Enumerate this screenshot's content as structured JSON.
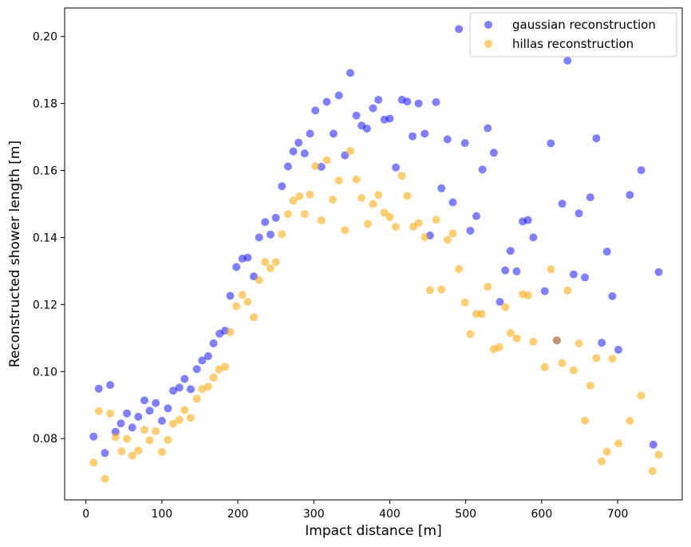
{
  "chart_data": {
    "type": "scatter",
    "xlabel": "Impact distance [m]",
    "ylabel": "Reconstructed shower length [m]",
    "xlim": [
      -28,
      785
    ],
    "ylim": [
      0.0617,
      0.2085
    ],
    "x_ticks": [
      0,
      100,
      200,
      300,
      400,
      500,
      600,
      700
    ],
    "y_ticks": [
      0.08,
      0.1,
      0.12,
      0.14,
      0.16,
      0.18,
      0.2
    ],
    "grid": false,
    "legend_position": "top-right",
    "series": [
      {
        "name": "gaussian reconstruction",
        "color": "#0000ff",
        "opacity": 0.5,
        "points": [
          [
            10,
            0.0806
          ],
          [
            17,
            0.0949
          ],
          [
            25,
            0.0757
          ],
          [
            32,
            0.096
          ],
          [
            39,
            0.082
          ],
          [
            46,
            0.0845
          ],
          [
            54,
            0.0875
          ],
          [
            61,
            0.0833
          ],
          [
            69,
            0.0865
          ],
          [
            77,
            0.0914
          ],
          [
            84,
            0.0883
          ],
          [
            92,
            0.0906
          ],
          [
            100,
            0.0853
          ],
          [
            108,
            0.089
          ],
          [
            115,
            0.0943
          ],
          [
            123,
            0.0952
          ],
          [
            130,
            0.0978
          ],
          [
            138,
            0.0947
          ],
          [
            146,
            0.1007
          ],
          [
            153,
            0.1033
          ],
          [
            161,
            0.1046
          ],
          [
            168,
            0.1084
          ],
          [
            176,
            0.1113
          ],
          [
            183,
            0.1122
          ],
          [
            190,
            0.1226
          ],
          [
            198,
            0.1312
          ],
          [
            206,
            0.1337
          ],
          [
            213,
            0.134
          ],
          [
            221,
            0.1284
          ],
          [
            228,
            0.14
          ],
          [
            236,
            0.1446
          ],
          [
            243,
            0.1409
          ],
          [
            250,
            0.1459
          ],
          [
            258,
            0.1553
          ],
          [
            266,
            0.1612
          ],
          [
            273,
            0.1657
          ],
          [
            280,
            0.1683
          ],
          [
            288,
            0.1651
          ],
          [
            295,
            0.171
          ],
          [
            302,
            0.1779
          ],
          [
            310,
            0.1611
          ],
          [
            317,
            0.1805
          ],
          [
            326,
            0.171
          ],
          [
            333,
            0.1824
          ],
          [
            341,
            0.1645
          ],
          [
            348,
            0.1891
          ],
          [
            356,
            0.1764
          ],
          [
            363,
            0.1734
          ],
          [
            370,
            0.1725
          ],
          [
            378,
            0.1786
          ],
          [
            385,
            0.1811
          ],
          [
            393,
            0.1752
          ],
          [
            400,
            0.1755
          ],
          [
            408,
            0.1609
          ],
          [
            416,
            0.1811
          ],
          [
            423,
            0.1806
          ],
          [
            430,
            0.1702
          ],
          [
            438,
            0.18
          ],
          [
            446,
            0.171
          ],
          [
            453,
            0.1406
          ],
          [
            461,
            0.1804
          ],
          [
            468,
            0.1547
          ],
          [
            476,
            0.1693
          ],
          [
            483,
            0.1505
          ],
          [
            491,
            0.2022
          ],
          [
            499,
            0.1682
          ],
          [
            506,
            0.142
          ],
          [
            514,
            0.1464
          ],
          [
            522,
            0.1603
          ],
          [
            529,
            0.1726
          ],
          [
            537,
            0.1653
          ],
          [
            545,
            0.1208
          ],
          [
            552,
            0.1302
          ],
          [
            559,
            0.136
          ],
          [
            567,
            0.1299
          ],
          [
            575,
            0.1448
          ],
          [
            582,
            0.1452
          ],
          [
            589,
            0.14
          ],
          [
            604,
            0.124
          ],
          [
            612,
            0.1681
          ],
          [
            627,
            0.1501
          ],
          [
            634,
            0.1928
          ],
          [
            642,
            0.129
          ],
          [
            649,
            0.1472
          ],
          [
            657,
            0.1281
          ],
          [
            664,
            0.152
          ],
          [
            672,
            0.1696
          ],
          [
            679,
            0.1086
          ],
          [
            686,
            0.1358
          ],
          [
            693,
            0.1225
          ],
          [
            701,
            0.1065
          ],
          [
            716,
            0.1527
          ],
          [
            731,
            0.1601
          ],
          [
            747,
            0.0782
          ],
          [
            754,
            0.1297
          ],
          [
            620,
            0.1093
          ]
        ]
      },
      {
        "name": "hillas reconstruction",
        "color": "#ffa500",
        "opacity": 0.55,
        "points": [
          [
            10,
            0.0728
          ],
          [
            17,
            0.0882
          ],
          [
            25,
            0.068
          ],
          [
            32,
            0.0875
          ],
          [
            39,
            0.0804
          ],
          [
            47,
            0.0762
          ],
          [
            54,
            0.0799
          ],
          [
            61,
            0.0749
          ],
          [
            69,
            0.0764
          ],
          [
            77,
            0.0826
          ],
          [
            84,
            0.0795
          ],
          [
            92,
            0.0822
          ],
          [
            100,
            0.076
          ],
          [
            108,
            0.0796
          ],
          [
            115,
            0.0844
          ],
          [
            123,
            0.0856
          ],
          [
            130,
            0.0885
          ],
          [
            138,
            0.0862
          ],
          [
            146,
            0.0919
          ],
          [
            153,
            0.0948
          ],
          [
            161,
            0.0955
          ],
          [
            168,
            0.0982
          ],
          [
            175,
            0.1006
          ],
          [
            183,
            0.1014
          ],
          [
            190,
            0.1118
          ],
          [
            198,
            0.1195
          ],
          [
            206,
            0.1229
          ],
          [
            213,
            0.1208
          ],
          [
            221,
            0.1162
          ],
          [
            228,
            0.1273
          ],
          [
            236,
            0.1327
          ],
          [
            243,
            0.1308
          ],
          [
            250,
            0.1327
          ],
          [
            258,
            0.141
          ],
          [
            266,
            0.147
          ],
          [
            273,
            0.151
          ],
          [
            281,
            0.1523
          ],
          [
            288,
            0.147
          ],
          [
            295,
            0.1528
          ],
          [
            302,
            0.1613
          ],
          [
            310,
            0.1451
          ],
          [
            317,
            0.1631
          ],
          [
            325,
            0.1513
          ],
          [
            333,
            0.157
          ],
          [
            341,
            0.1422
          ],
          [
            348,
            0.1658
          ],
          [
            356,
            0.1573
          ],
          [
            363,
            0.1518
          ],
          [
            371,
            0.1441
          ],
          [
            378,
            0.15
          ],
          [
            385,
            0.1527
          ],
          [
            393,
            0.1474
          ],
          [
            400,
            0.1461
          ],
          [
            408,
            0.1432
          ],
          [
            416,
            0.1584
          ],
          [
            423,
            0.1524
          ],
          [
            431,
            0.1432
          ],
          [
            438,
            0.1443
          ],
          [
            446,
            0.1401
          ],
          [
            453,
            0.1243
          ],
          [
            461,
            0.1453
          ],
          [
            468,
            0.1245
          ],
          [
            476,
            0.1393
          ],
          [
            483,
            0.1412
          ],
          [
            491,
            0.1306
          ],
          [
            499,
            0.1206
          ],
          [
            506,
            0.1112
          ],
          [
            514,
            0.1172
          ],
          [
            521,
            0.1172
          ],
          [
            529,
            0.1253
          ],
          [
            537,
            0.1067
          ],
          [
            544,
            0.1073
          ],
          [
            552,
            0.1192
          ],
          [
            559,
            0.1115
          ],
          [
            567,
            0.1099
          ],
          [
            575,
            0.1231
          ],
          [
            582,
            0.1227
          ],
          [
            589,
            0.1089
          ],
          [
            604,
            0.1013
          ],
          [
            612,
            0.1305
          ],
          [
            627,
            0.1025
          ],
          [
            634,
            0.1242
          ],
          [
            642,
            0.1004
          ],
          [
            649,
            0.1084
          ],
          [
            657,
            0.0854
          ],
          [
            664,
            0.0958
          ],
          [
            672,
            0.104
          ],
          [
            679,
            0.0732
          ],
          [
            686,
            0.0761
          ],
          [
            693,
            0.1038
          ],
          [
            701,
            0.0785
          ],
          [
            716,
            0.0853
          ],
          [
            731,
            0.0928
          ],
          [
            746,
            0.0703
          ],
          [
            754,
            0.0752
          ],
          [
            620,
            0.1093
          ]
        ]
      }
    ]
  }
}
